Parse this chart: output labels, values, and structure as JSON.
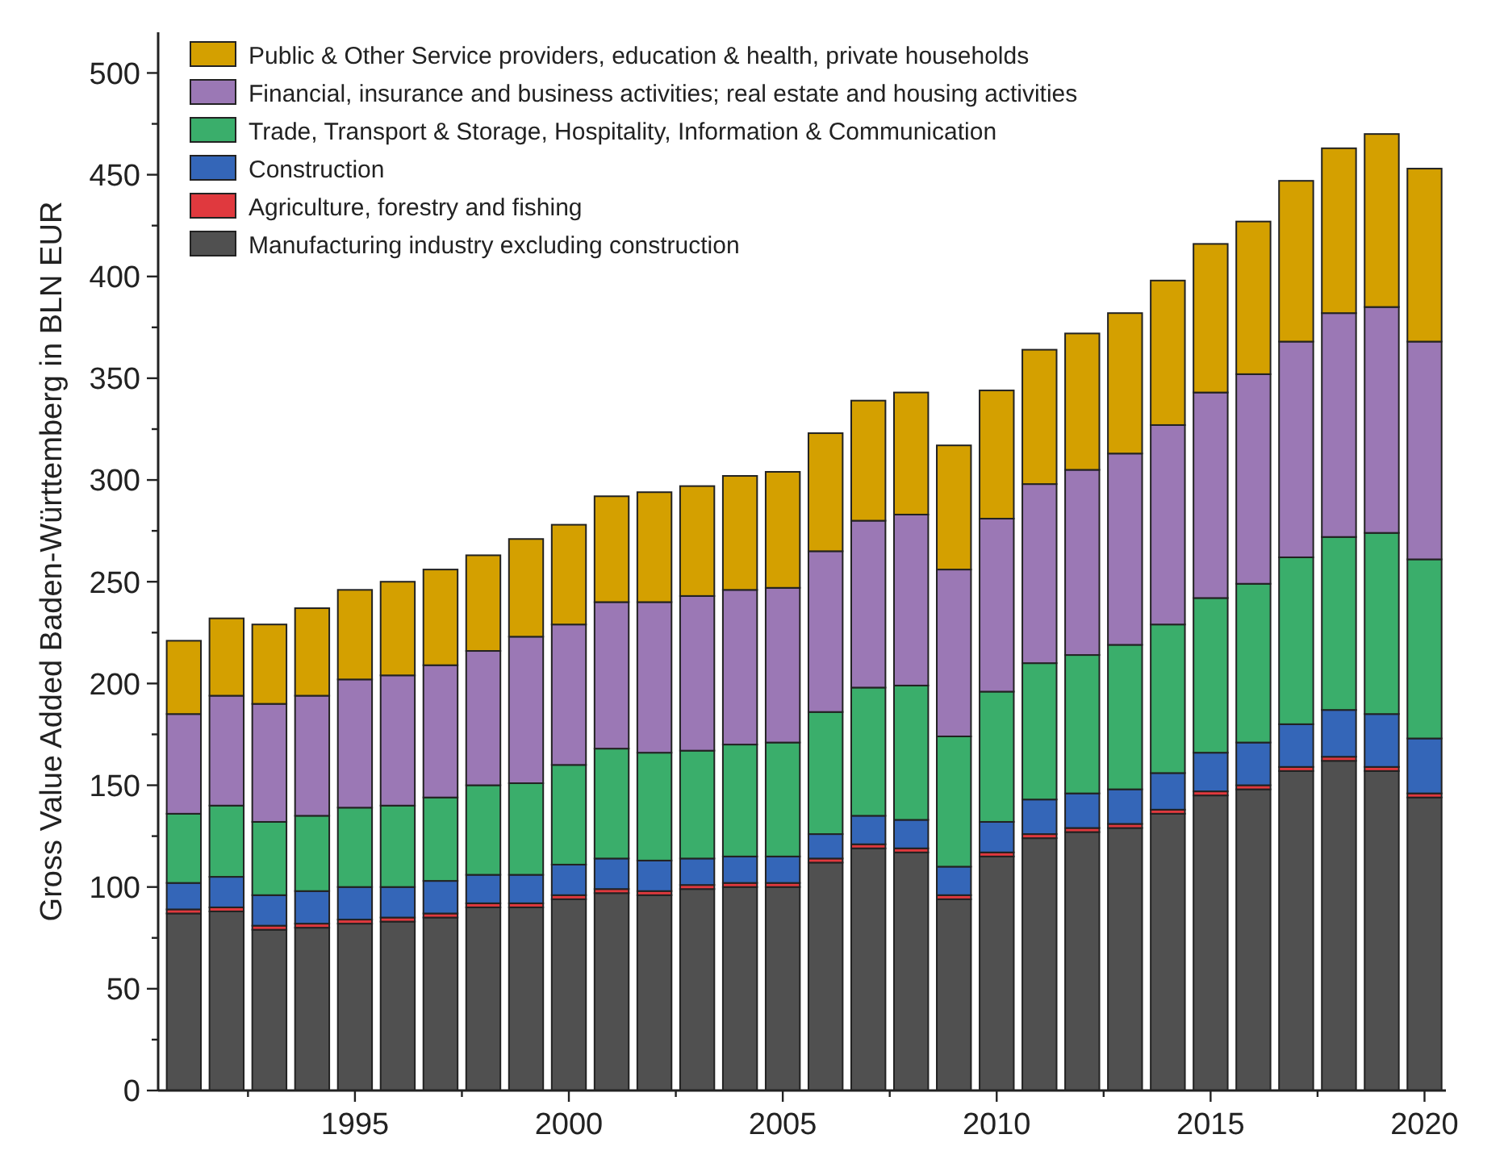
{
  "chart_data": {
    "type": "bar",
    "stacked": true,
    "ylabel": "Gross Value Added Baden-Württemberg in BLN EUR",
    "x": [
      1991,
      1992,
      1993,
      1994,
      1995,
      1996,
      1997,
      1998,
      1999,
      2000,
      2001,
      2002,
      2003,
      2004,
      2005,
      2006,
      2007,
      2008,
      2009,
      2010,
      2011,
      2012,
      2013,
      2014,
      2015,
      2016,
      2017,
      2018,
      2019,
      2020
    ],
    "xlim": [
      1990.4,
      2020.5
    ],
    "xticks": [
      {
        "value": 1992.5,
        "label": null
      },
      1995,
      {
        "value": 1997.5,
        "label": null
      },
      2000,
      {
        "value": 2002.5,
        "label": null
      },
      2005,
      {
        "value": 2007.5,
        "label": null
      },
      2010,
      {
        "value": 2012.5,
        "label": null
      },
      2015,
      {
        "value": 2017.5,
        "label": null
      },
      2020
    ],
    "ylim": [
      0,
      520
    ],
    "yticks": [
      0,
      {
        "value": 25,
        "label": null
      },
      50,
      {
        "value": 75,
        "label": null
      },
      100,
      {
        "value": 125,
        "label": null
      },
      150,
      {
        "value": 175,
        "label": null
      },
      200,
      {
        "value": 225,
        "label": null
      },
      250,
      {
        "value": 275,
        "label": null
      },
      300,
      {
        "value": 325,
        "label": null
      },
      350,
      {
        "value": 375,
        "label": null
      },
      400,
      {
        "value": 425,
        "label": null
      },
      450,
      {
        "value": 475,
        "label": null
      },
      500
    ],
    "legend": "top left",
    "grid": false,
    "series": [
      {
        "name": "Manufacturing industry excluding construction",
        "color": "#505050",
        "values": [
          87,
          88,
          79,
          80,
          82,
          83,
          85,
          90,
          90,
          94,
          97,
          96,
          99,
          100,
          100,
          112,
          119,
          117,
          94,
          115,
          124,
          127,
          129,
          136,
          145,
          148,
          157,
          162,
          157,
          144
        ]
      },
      {
        "name": "Agriculture, forestry and fishing",
        "color": "#e0393e",
        "values": [
          2,
          2,
          2,
          2,
          2,
          2,
          2,
          2,
          2,
          2,
          2,
          2,
          2,
          2,
          2,
          2,
          2,
          2,
          2,
          2,
          2,
          2,
          2,
          2,
          2,
          2,
          2,
          2,
          2,
          2
        ]
      },
      {
        "name": "Construction",
        "color": "#3466b8",
        "values": [
          13,
          15,
          15,
          16,
          16,
          15,
          16,
          14,
          14,
          15,
          15,
          15,
          13,
          13,
          13,
          12,
          14,
          14,
          14,
          15,
          17,
          17,
          17,
          18,
          19,
          21,
          21,
          23,
          26,
          27
        ]
      },
      {
        "name": "Trade, Transport & Storage, Hospitality, Information & Communication",
        "color": "#3aae6b",
        "values": [
          34,
          35,
          36,
          37,
          39,
          40,
          41,
          44,
          45,
          49,
          54,
          53,
          53,
          55,
          56,
          60,
          63,
          66,
          64,
          64,
          67,
          68,
          71,
          73,
          76,
          78,
          82,
          85,
          89,
          88
        ]
      },
      {
        "name": "Financial, insurance and business activities; real estate and housing activities",
        "color": "#9b78b5",
        "values": [
          49,
          54,
          58,
          59,
          63,
          64,
          65,
          66,
          72,
          69,
          72,
          74,
          76,
          76,
          76,
          79,
          82,
          84,
          82,
          85,
          88,
          91,
          94,
          98,
          101,
          103,
          106,
          110,
          111,
          107
        ]
      },
      {
        "name": "Public & Other Service providers, education & health, private households",
        "color": "#d4a000",
        "values": [
          36,
          38,
          39,
          43,
          44,
          46,
          47,
          47,
          48,
          49,
          52,
          54,
          54,
          56,
          57,
          58,
          59,
          60,
          61,
          63,
          66,
          67,
          69,
          71,
          73,
          75,
          79,
          81,
          85,
          85
        ]
      }
    ]
  }
}
